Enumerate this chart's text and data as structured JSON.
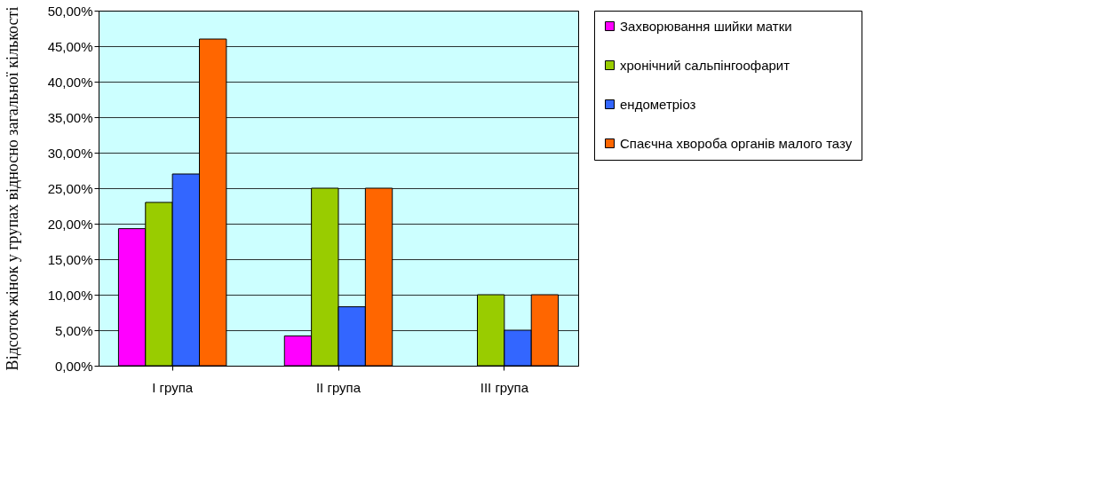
{
  "chart_data": {
    "type": "bar",
    "ylabel": "Відсоток жінок у групах відносно загальної кількості",
    "categories": [
      "I група",
      "II група",
      "III група"
    ],
    "series": [
      {
        "name": "Захворювання шийки матки",
        "color": "#ff00ff",
        "values": [
          19.3,
          4.2,
          null
        ]
      },
      {
        "name": "хронічний сальпінгоофарит",
        "color": "#99cc00",
        "values": [
          23,
          25,
          10
        ]
      },
      {
        "name": "ендометріоз",
        "color": "#3366ff",
        "values": [
          27,
          8.3,
          5
        ]
      },
      {
        "name": "Спаєчна хвороба органів малого тазу",
        "color": "#ff6600",
        "values": [
          46,
          25,
          10
        ]
      }
    ],
    "ylim": [
      0,
      50
    ],
    "yticks": [
      {
        "value": 0,
        "label": "0,00%"
      },
      {
        "value": 5,
        "label": "5,00%"
      },
      {
        "value": 10,
        "label": "10,00%"
      },
      {
        "value": 15,
        "label": "15,00%"
      },
      {
        "value": 20,
        "label": "20,00%"
      },
      {
        "value": 25,
        "label": "25,00%"
      },
      {
        "value": 30,
        "label": "30,00%"
      },
      {
        "value": 35,
        "label": "35,00%"
      },
      {
        "value": 40,
        "label": "40,00%"
      },
      {
        "value": 45,
        "label": "45,00%"
      },
      {
        "value": 50,
        "label": "50,00%"
      }
    ],
    "grid": "y",
    "legend": "right"
  }
}
